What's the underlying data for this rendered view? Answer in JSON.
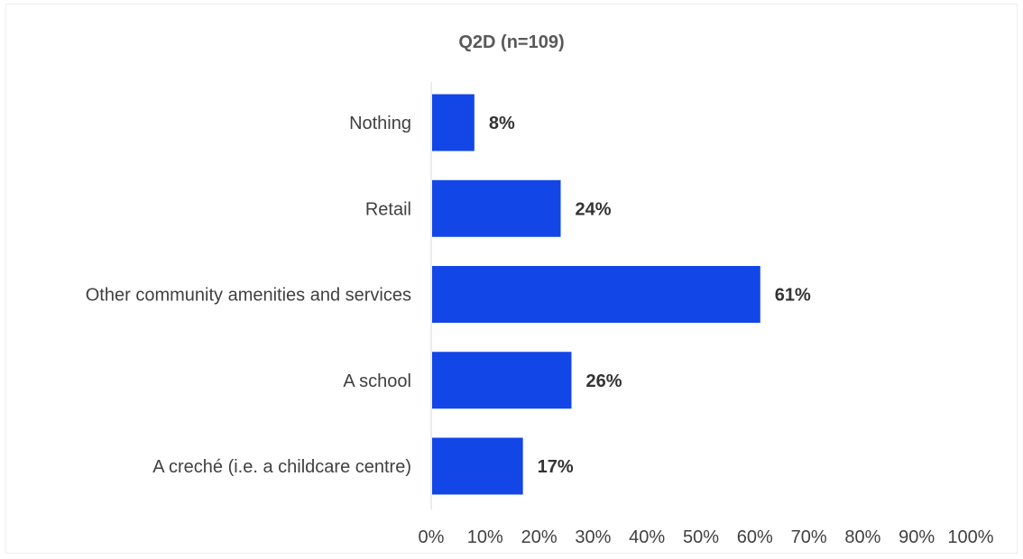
{
  "chart_data": {
    "type": "bar",
    "orientation": "horizontal",
    "title": "Q2D (n=109)",
    "categories": [
      "Nothing",
      "Retail",
      "Other community amenities and services",
      "A school",
      "A creché (i.e. a childcare centre)"
    ],
    "values": [
      8,
      24,
      61,
      26,
      17
    ],
    "value_labels": [
      "8%",
      "24%",
      "61%",
      "26%",
      "17%"
    ],
    "xlim": [
      0,
      100
    ],
    "x_ticks": [
      "0%",
      "10%",
      "20%",
      "30%",
      "40%",
      "50%",
      "60%",
      "70%",
      "80%",
      "90%",
      "100%"
    ],
    "xlabel": "",
    "ylabel": "",
    "grid": false,
    "legend": "none",
    "colors": {
      "bar": "#1246E6",
      "title": "#595959",
      "label": "#404040",
      "value_label": "#333333",
      "axis": "#d9d9d9"
    }
  }
}
